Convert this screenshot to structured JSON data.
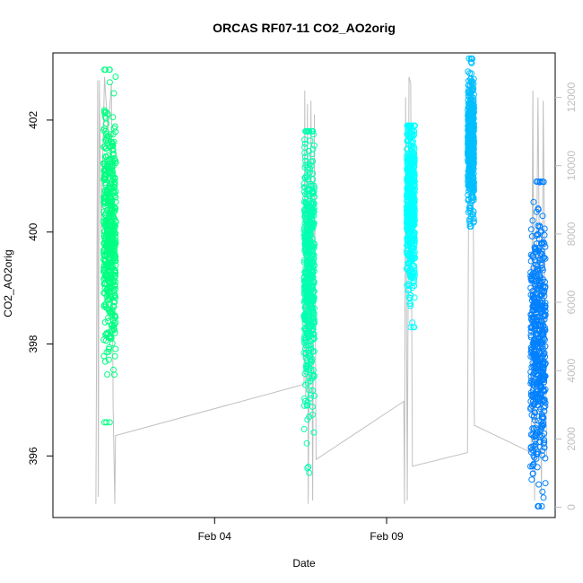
{
  "chart_data": {
    "type": "scatter",
    "title": "ORCAS RF07-11 CO2_AO2orig",
    "xlabel": "Date",
    "ylabel": "CO2_AO2orig",
    "y_ticks": [
      396,
      398,
      400,
      402
    ],
    "ylim": [
      394.9,
      403.2
    ],
    "x_ticks": [
      {
        "label": "Feb 04",
        "day": 4
      },
      {
        "label": "Feb 09",
        "day": 9
      }
    ],
    "xlim_days": [
      -0.7,
      13.9
    ],
    "secondary_y_ticks": [
      0,
      2000,
      4000,
      6000,
      8000,
      10000,
      12000
    ],
    "secondary_ylim": [
      -300,
      13300
    ],
    "grid": false,
    "colors": {
      "axes": "#000000",
      "secondary_axis": "#c0c0c0",
      "altitude_line": "#c0c0c0"
    },
    "flights": [
      {
        "center_day": 0.95,
        "width_days": 0.36,
        "y_min": 396.6,
        "y_max": 402.9,
        "core_min": 397.6,
        "core_max": 401.8,
        "mean": 400.0,
        "color": "#00ff80"
      },
      {
        "center_day": 6.75,
        "width_days": 0.3,
        "y_min": 395.7,
        "y_max": 401.8,
        "core_min": 396.2,
        "core_max": 401.0,
        "mean": 399.2,
        "color": "#00ffb0"
      },
      {
        "center_day": 9.7,
        "width_days": 0.24,
        "y_min": 398.3,
        "y_max": 401.9,
        "core_min": 398.6,
        "core_max": 401.6,
        "mean": 400.5,
        "color": "#00ffff"
      },
      {
        "center_day": 11.45,
        "width_days": 0.18,
        "y_min": 400.1,
        "y_max": 403.1,
        "core_min": 400.6,
        "core_max": 402.8,
        "mean": 401.6,
        "color": "#00bfff"
      },
      {
        "center_day": 13.4,
        "width_days": 0.44,
        "y_min": 395.1,
        "y_max": 400.9,
        "core_min": 395.8,
        "core_max": 400.4,
        "mean": 398.0,
        "color": "#0080ff"
      }
    ],
    "altitude_track": [
      [
        0.55,
        100
      ],
      [
        0.6,
        12500
      ],
      [
        0.62,
        300
      ],
      [
        0.65,
        12500
      ],
      [
        0.7,
        8000
      ],
      [
        0.8,
        12600
      ],
      [
        0.9,
        11000
      ],
      [
        1.0,
        12400
      ],
      [
        1.05,
        3000
      ],
      [
        1.1,
        100
      ],
      [
        1.12,
        2100
      ],
      [
        6.6,
        3600
      ],
      [
        6.62,
        12200
      ],
      [
        6.65,
        3000
      ],
      [
        6.7,
        11800
      ],
      [
        6.72,
        100
      ],
      [
        6.8,
        11900
      ],
      [
        6.85,
        200
      ],
      [
        6.9,
        11500
      ],
      [
        6.95,
        1400
      ],
      [
        9.5,
        3100
      ],
      [
        9.52,
        100
      ],
      [
        9.55,
        12000
      ],
      [
        9.6,
        200
      ],
      [
        9.65,
        12600
      ],
      [
        9.7,
        12400
      ],
      [
        9.75,
        1200
      ],
      [
        11.35,
        1600
      ],
      [
        11.4,
        12500
      ],
      [
        11.45,
        11900
      ],
      [
        11.5,
        12600
      ],
      [
        11.55,
        2400
      ],
      [
        13.2,
        1600
      ],
      [
        13.25,
        12200
      ],
      [
        13.3,
        200
      ],
      [
        13.4,
        12000
      ],
      [
        13.5,
        300
      ],
      [
        13.55,
        11900
      ],
      [
        13.65,
        1500
      ]
    ]
  }
}
